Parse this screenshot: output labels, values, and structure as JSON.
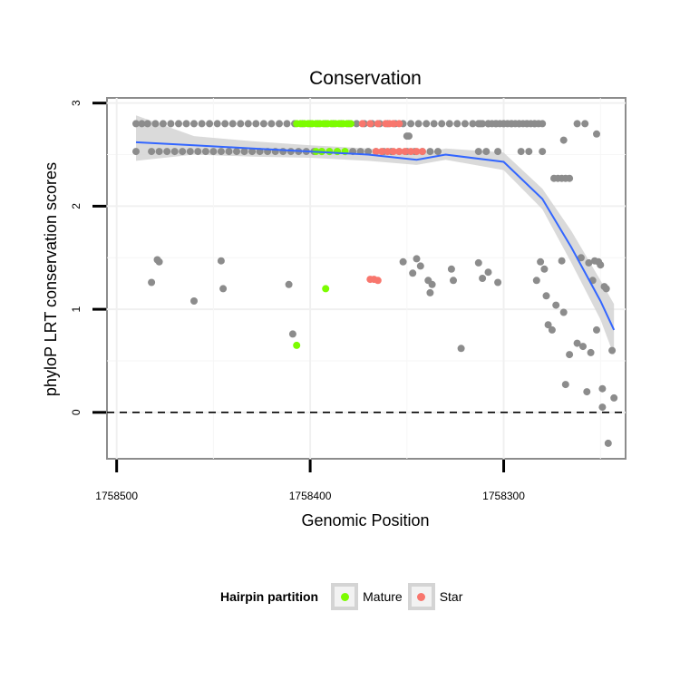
{
  "chart_data": {
    "type": "scatter",
    "title": "Conservation",
    "xlabel": "Genomic Position",
    "ylabel": "phyloP LRT conservation scores",
    "x_reversed": true,
    "xlim": [
      1758505,
      1758237
    ],
    "ylim": [
      -0.45,
      3.05
    ],
    "x_ticks": [
      1758500,
      1758400,
      1758300
    ],
    "x_tick_labels": [
      "1758500",
      "1758400",
      "1758300"
    ],
    "y_ticks": [
      0,
      1,
      2,
      3
    ],
    "y_tick_labels": [
      "0",
      "1",
      "2",
      "3"
    ],
    "reference_line": {
      "y": 0,
      "style": "dashed"
    },
    "grid": true,
    "legend": {
      "title": "Hairpin partition",
      "placement": "bottom",
      "entries": [
        {
          "name": "Mature",
          "color": "#7cfc00"
        },
        {
          "name": "Star",
          "color": "#f8766d"
        }
      ]
    },
    "other_color": "#8c8c8c",
    "series": [
      {
        "name": "Other",
        "color": "#8c8c8c",
        "points": [
          [
            1758490,
            2.8
          ],
          [
            1758487,
            2.8
          ],
          [
            1758484,
            2.8
          ],
          [
            1758480,
            2.8
          ],
          [
            1758476,
            2.8
          ],
          [
            1758472,
            2.8
          ],
          [
            1758468,
            2.8
          ],
          [
            1758464,
            2.8
          ],
          [
            1758460,
            2.8
          ],
          [
            1758456,
            2.8
          ],
          [
            1758452,
            2.8
          ],
          [
            1758448,
            2.8
          ],
          [
            1758444,
            2.8
          ],
          [
            1758440,
            2.8
          ],
          [
            1758436,
            2.8
          ],
          [
            1758432,
            2.8
          ],
          [
            1758428,
            2.8
          ],
          [
            1758424,
            2.8
          ],
          [
            1758420,
            2.8
          ],
          [
            1758416,
            2.8
          ],
          [
            1758412,
            2.8
          ],
          [
            1758408,
            2.8
          ],
          [
            1758404,
            2.8
          ],
          [
            1758400,
            2.8
          ],
          [
            1758396,
            2.8
          ],
          [
            1758392,
            2.8
          ],
          [
            1758388,
            2.8
          ],
          [
            1758384,
            2.8
          ],
          [
            1758380,
            2.8
          ],
          [
            1758376,
            2.8
          ],
          [
            1758372,
            2.8
          ],
          [
            1758368,
            2.8
          ],
          [
            1758364,
            2.8
          ],
          [
            1758360,
            2.8
          ],
          [
            1758356,
            2.8
          ],
          [
            1758352,
            2.8
          ],
          [
            1758348,
            2.8
          ],
          [
            1758344,
            2.8
          ],
          [
            1758340,
            2.8
          ],
          [
            1758336,
            2.8
          ],
          [
            1758332,
            2.8
          ],
          [
            1758328,
            2.8
          ],
          [
            1758324,
            2.8
          ],
          [
            1758320,
            2.8
          ],
          [
            1758316,
            2.8
          ],
          [
            1758312,
            2.8
          ],
          [
            1758308,
            2.8
          ],
          [
            1758304,
            2.8
          ],
          [
            1758300,
            2.8
          ],
          [
            1758296,
            2.8
          ],
          [
            1758292,
            2.8
          ],
          [
            1758288,
            2.8
          ],
          [
            1758284,
            2.8
          ],
          [
            1758280,
            2.8
          ],
          [
            1758490,
            2.53
          ],
          [
            1758482,
            2.53
          ],
          [
            1758478,
            2.53
          ],
          [
            1758474,
            2.53
          ],
          [
            1758470,
            2.53
          ],
          [
            1758466,
            2.53
          ],
          [
            1758462,
            2.53
          ],
          [
            1758458,
            2.53
          ],
          [
            1758454,
            2.53
          ],
          [
            1758450,
            2.53
          ],
          [
            1758446,
            2.53
          ],
          [
            1758442,
            2.53
          ],
          [
            1758438,
            2.53
          ],
          [
            1758434,
            2.53
          ],
          [
            1758430,
            2.53
          ],
          [
            1758426,
            2.53
          ],
          [
            1758422,
            2.53
          ],
          [
            1758418,
            2.53
          ],
          [
            1758414,
            2.53
          ],
          [
            1758410,
            2.53
          ],
          [
            1758406,
            2.53
          ],
          [
            1758402,
            2.53
          ],
          [
            1758398,
            2.53
          ],
          [
            1758394,
            2.53
          ],
          [
            1758390,
            2.53
          ],
          [
            1758386,
            2.53
          ],
          [
            1758382,
            2.53
          ],
          [
            1758378,
            2.53
          ],
          [
            1758374,
            2.53
          ],
          [
            1758370,
            2.53
          ],
          [
            1758366,
            2.53
          ],
          [
            1758362,
            2.53
          ],
          [
            1758358,
            2.53
          ],
          [
            1758354,
            2.53
          ],
          [
            1758350,
            2.53
          ],
          [
            1758346,
            2.53
          ],
          [
            1758342,
            2.53
          ],
          [
            1758338,
            2.53
          ],
          [
            1758334,
            2.53
          ],
          [
            1758313,
            2.53
          ],
          [
            1758309,
            2.53
          ],
          [
            1758303,
            2.53
          ],
          [
            1758291,
            2.53
          ],
          [
            1758287,
            2.53
          ],
          [
            1758280,
            2.53
          ],
          [
            1758313,
            2.8
          ],
          [
            1758311,
            2.8
          ],
          [
            1758308,
            2.8
          ],
          [
            1758306,
            2.8
          ],
          [
            1758304,
            2.8
          ],
          [
            1758302,
            2.8
          ],
          [
            1758300,
            2.8
          ],
          [
            1758298,
            2.8
          ],
          [
            1758296,
            2.8
          ],
          [
            1758294,
            2.8
          ],
          [
            1758292,
            2.8
          ],
          [
            1758290,
            2.8
          ],
          [
            1758288,
            2.8
          ],
          [
            1758286,
            2.8
          ],
          [
            1758284,
            2.8
          ],
          [
            1758282,
            2.8
          ],
          [
            1758350,
            2.68
          ],
          [
            1758349,
            2.68
          ],
          [
            1758274,
            2.27
          ],
          [
            1758272,
            2.27
          ],
          [
            1758270,
            2.27
          ],
          [
            1758268,
            2.27
          ],
          [
            1758266,
            2.27
          ],
          [
            1758269,
            2.64
          ],
          [
            1758262,
            2.8
          ],
          [
            1758258,
            2.8
          ],
          [
            1758252,
            2.7
          ],
          [
            1758479,
            1.48
          ],
          [
            1758478,
            1.46
          ],
          [
            1758482,
            1.26
          ],
          [
            1758460,
            1.08
          ],
          [
            1758446,
            1.47
          ],
          [
            1758445,
            1.2
          ],
          [
            1758411,
            1.24
          ],
          [
            1758409,
            0.76
          ],
          [
            1758352,
            1.46
          ],
          [
            1758347,
            1.35
          ],
          [
            1758345,
            1.49
          ],
          [
            1758343,
            1.42
          ],
          [
            1758339,
            1.28
          ],
          [
            1758338,
            1.16
          ],
          [
            1758337,
            1.24
          ],
          [
            1758327,
            1.39
          ],
          [
            1758326,
            1.28
          ],
          [
            1758322,
            0.62
          ],
          [
            1758313,
            1.45
          ],
          [
            1758311,
            1.3
          ],
          [
            1758308,
            1.36
          ],
          [
            1758303,
            1.26
          ],
          [
            1758283,
            1.28
          ],
          [
            1758281,
            1.46
          ],
          [
            1758279,
            1.39
          ],
          [
            1758278,
            1.13
          ],
          [
            1758277,
            0.85
          ],
          [
            1758275,
            0.8
          ],
          [
            1758273,
            1.04
          ],
          [
            1758270,
            1.47
          ],
          [
            1758269,
            0.97
          ],
          [
            1758268,
            0.27
          ],
          [
            1758266,
            0.56
          ],
          [
            1758262,
            0.67
          ],
          [
            1758260,
            1.5
          ],
          [
            1758259,
            0.64
          ],
          [
            1758257,
            0.2
          ],
          [
            1758256,
            1.45
          ],
          [
            1758255,
            0.58
          ],
          [
            1758254,
            1.28
          ],
          [
            1758253,
            1.47
          ],
          [
            1758252,
            0.8
          ],
          [
            1758251,
            1.46
          ],
          [
            1758250,
            1.43
          ],
          [
            1758249,
            0.23
          ],
          [
            1758249,
            0.05
          ],
          [
            1758248,
            1.22
          ],
          [
            1758247,
            1.2
          ],
          [
            1758246,
            -0.3
          ],
          [
            1758244,
            0.6
          ],
          [
            1758243,
            0.14
          ]
        ]
      },
      {
        "name": "Mature",
        "color": "#7cfc00",
        "points": [
          [
            1758407,
            2.8
          ],
          [
            1758405,
            2.8
          ],
          [
            1758403,
            2.8
          ],
          [
            1758401,
            2.8
          ],
          [
            1758399,
            2.8
          ],
          [
            1758397,
            2.8
          ],
          [
            1758395,
            2.8
          ],
          [
            1758393,
            2.8
          ],
          [
            1758391,
            2.8
          ],
          [
            1758389,
            2.8
          ],
          [
            1758387,
            2.8
          ],
          [
            1758385,
            2.8
          ],
          [
            1758383,
            2.8
          ],
          [
            1758381,
            2.8
          ],
          [
            1758379,
            2.8
          ],
          [
            1758397,
            2.53
          ],
          [
            1758394,
            2.53
          ],
          [
            1758390,
            2.53
          ],
          [
            1758386,
            2.53
          ],
          [
            1758382,
            2.53
          ],
          [
            1758392,
            1.2
          ],
          [
            1758407,
            0.65
          ]
        ]
      },
      {
        "name": "Star",
        "color": "#f8766d",
        "points": [
          [
            1758373,
            2.8
          ],
          [
            1758369,
            2.8
          ],
          [
            1758365,
            2.8
          ],
          [
            1758361,
            2.8
          ],
          [
            1758359,
            2.8
          ],
          [
            1758357,
            2.8
          ],
          [
            1758354,
            2.8
          ],
          [
            1758366,
            2.53
          ],
          [
            1758363,
            2.53
          ],
          [
            1758360,
            2.53
          ],
          [
            1758357,
            2.53
          ],
          [
            1758354,
            2.53
          ],
          [
            1758351,
            2.53
          ],
          [
            1758348,
            2.53
          ],
          [
            1758345,
            2.53
          ],
          [
            1758342,
            2.53
          ],
          [
            1758369,
            1.29
          ],
          [
            1758367,
            1.29
          ],
          [
            1758365,
            1.28
          ]
        ]
      }
    ],
    "smooth": {
      "color": "#3366ff",
      "band_color": "#d4d4d4",
      "x": [
        1758490,
        1758460,
        1758430,
        1758400,
        1758370,
        1758345,
        1758330,
        1758300,
        1758280,
        1758265,
        1758250,
        1758243
      ],
      "y": [
        2.62,
        2.59,
        2.56,
        2.53,
        2.5,
        2.45,
        2.5,
        2.43,
        2.07,
        1.6,
        1.08,
        0.8
      ],
      "lower": [
        2.44,
        2.5,
        2.48,
        2.47,
        2.44,
        2.4,
        2.45,
        2.35,
        1.97,
        1.45,
        0.9,
        0.55
      ],
      "upper": [
        2.88,
        2.68,
        2.63,
        2.59,
        2.56,
        2.5,
        2.56,
        2.52,
        2.17,
        1.76,
        1.28,
        1.05
      ]
    }
  }
}
